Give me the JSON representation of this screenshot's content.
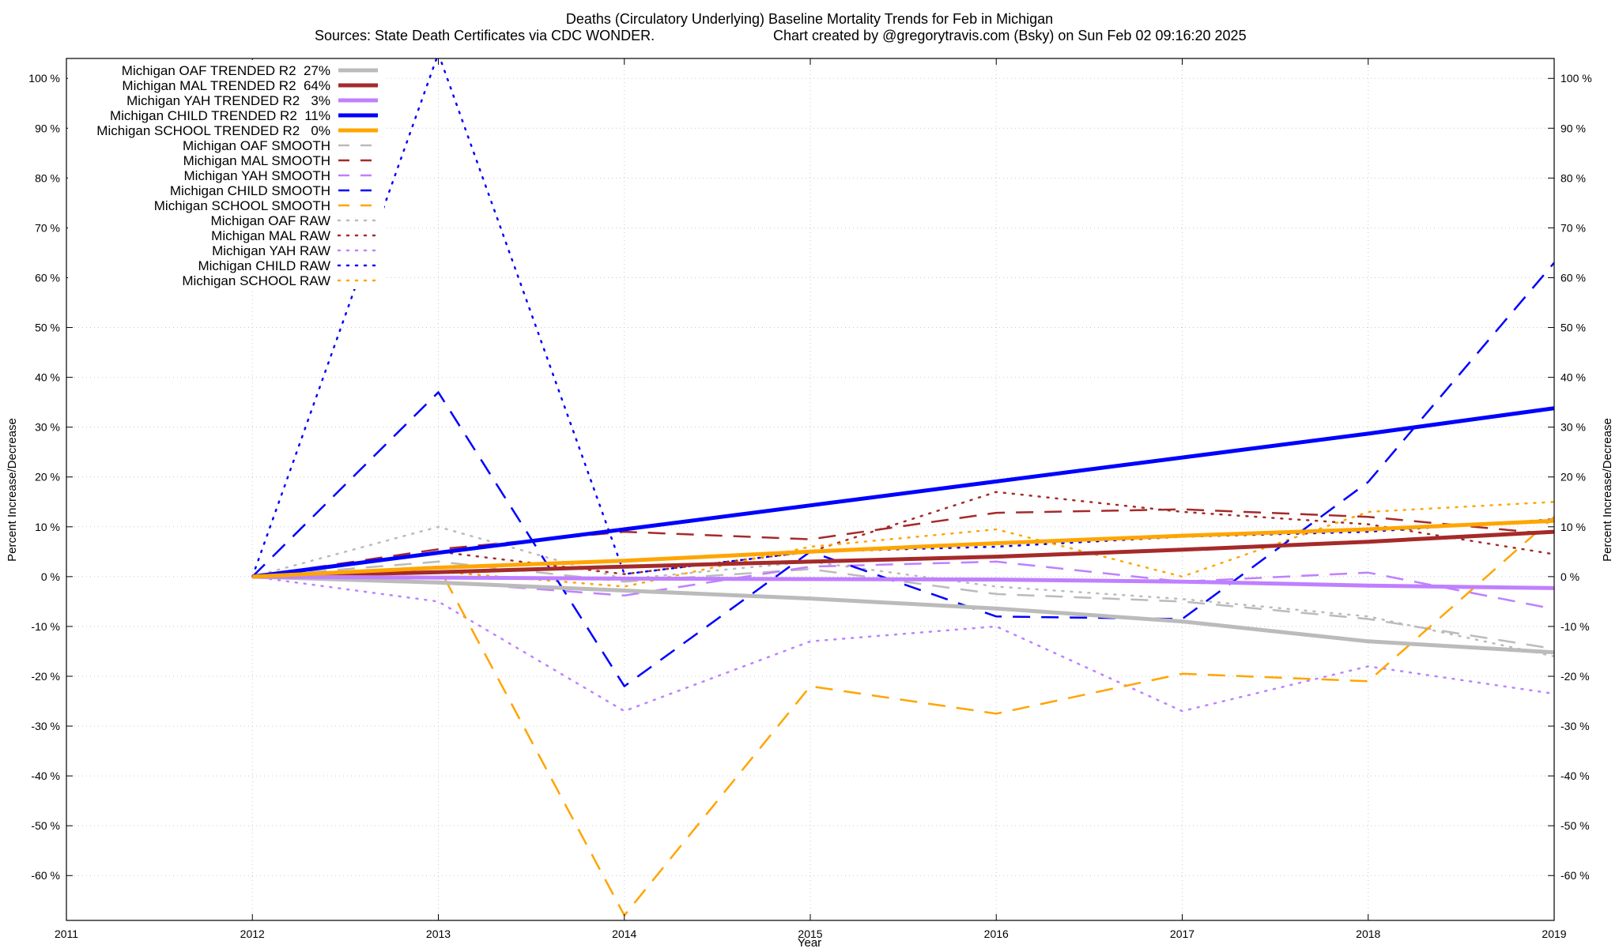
{
  "chart_data": {
    "type": "line",
    "title": "Deaths (Circulatory Underlying)  Baseline Mortality Trends for Feb in Michigan",
    "subtitle_left": "Sources: State Death Certificates via CDC WONDER.",
    "subtitle_right": "Chart created by @gregorytravis.com (Bsky) on Sun Feb 02 09:16:20 2025",
    "xlabel": "Year",
    "ylabel_left": "Percent Increase/Decrease",
    "ylabel_right": "Percent Increase/Decrease",
    "xlim": [
      2011,
      2019
    ],
    "ylim": [
      -69,
      104
    ],
    "x_ticks": [
      2011,
      2012,
      2013,
      2014,
      2015,
      2016,
      2017,
      2018,
      2019
    ],
    "x_tick_labels": [
      "2011",
      "2012",
      "2013",
      "2014",
      "2015",
      "2016",
      "2017",
      "2018",
      "2019"
    ],
    "y_ticks": [
      -60,
      -50,
      -40,
      -30,
      -20,
      -10,
      0,
      10,
      20,
      30,
      40,
      50,
      60,
      70,
      80,
      90,
      100
    ],
    "y_tick_labels": [
      "-60 %",
      "-50 %",
      "-40 %",
      "-30 %",
      "-20 %",
      "-10 %",
      "0 %",
      "10 %",
      "20 %",
      "30 %",
      "40 %",
      "50 %",
      "60 %",
      "70 %",
      "80 %",
      "90 %",
      "100 %"
    ],
    "grid": true,
    "legend_position": "top-left",
    "x": [
      2012,
      2013,
      2014,
      2015,
      2016,
      2017,
      2018,
      2019
    ],
    "colors": {
      "oaf": "#bbbbbb",
      "mal": "#a52a2a",
      "yah": "#bf80ff",
      "child": "#0000ff",
      "school": "#ffa500"
    },
    "series": [
      {
        "name": "Michigan OAF TRENDED R2  27%",
        "color": "oaf",
        "style": "trend",
        "values": [
          0,
          -1.2,
          -2.8,
          -4.4,
          -6.4,
          -9.0,
          -13.0,
          -15.2
        ]
      },
      {
        "name": "Michigan MAL TRENDED R2  64%",
        "color": "mal",
        "style": "trend",
        "values": [
          0,
          0.9,
          2.0,
          3.0,
          4.0,
          5.4,
          7.0,
          9.0
        ]
      },
      {
        "name": "Michigan YAH TRENDED R2   3%",
        "color": "yah",
        "style": "trend",
        "values": [
          0,
          -0.2,
          -0.4,
          -0.5,
          -0.6,
          -1.0,
          -1.8,
          -2.3
        ]
      },
      {
        "name": "Michigan CHILD TRENDED R2  11%",
        "color": "child",
        "style": "trend",
        "values": [
          0,
          4.8,
          9.5,
          14.3,
          19.1,
          23.9,
          28.7,
          33.8
        ]
      },
      {
        "name": "Michigan SCHOOL TRENDED R2   0%",
        "color": "school",
        "style": "trend",
        "values": [
          0,
          1.8,
          3.2,
          5.0,
          6.7,
          8.2,
          9.5,
          11.2
        ]
      },
      {
        "name": "Michigan OAF SMOOTH",
        "color": "oaf",
        "style": "smooth",
        "values": [
          0,
          3.0,
          -1.0,
          1.5,
          -3.5,
          -5.0,
          -8.5,
          -14.5
        ]
      },
      {
        "name": "Michigan MAL SMOOTH",
        "color": "mal",
        "style": "smooth",
        "values": [
          0,
          5.5,
          9.0,
          7.5,
          12.8,
          13.5,
          12.0,
          8.5
        ]
      },
      {
        "name": "Michigan YAH SMOOTH",
        "color": "yah",
        "style": "smooth",
        "values": [
          0,
          -1.0,
          -3.8,
          2.0,
          3.0,
          -1.0,
          0.8,
          -6.5
        ]
      },
      {
        "name": "Michigan CHILD SMOOTH",
        "color": "child",
        "style": "smooth",
        "values": [
          0,
          37.0,
          -22.0,
          5.0,
          -8.0,
          -8.5,
          19.0,
          63.0
        ]
      },
      {
        "name": "Michigan SCHOOL SMOOTH",
        "color": "school",
        "style": "smooth",
        "values": [
          0,
          2.0,
          -68.0,
          -22.0,
          -27.5,
          -19.5,
          -21.0,
          12.0
        ]
      },
      {
        "name": "Michigan OAF RAW",
        "color": "oaf",
        "style": "raw",
        "values": [
          0,
          10.0,
          -0.5,
          3.0,
          -2.0,
          -4.5,
          -8.0,
          -16.0
        ]
      },
      {
        "name": "Michigan MAL RAW",
        "color": "mal",
        "style": "raw",
        "values": [
          0,
          5.0,
          0.5,
          5.0,
          17.0,
          13.0,
          10.5,
          4.5
        ]
      },
      {
        "name": "Michigan YAH RAW",
        "color": "yah",
        "style": "raw",
        "values": [
          0,
          -5.0,
          -27.0,
          -13.0,
          -10.0,
          -27.0,
          -18.0,
          -23.5
        ]
      },
      {
        "name": "Michigan CHILD RAW",
        "color": "child",
        "style": "raw",
        "values": [
          0,
          105.0,
          0.5,
          5.0,
          6.0,
          8.0,
          9.0,
          11.5
        ]
      },
      {
        "name": "Michigan SCHOOL RAW",
        "color": "school",
        "style": "raw",
        "values": [
          0,
          1.0,
          -2.0,
          6.0,
          9.5,
          0.0,
          13.0,
          15.0
        ]
      }
    ]
  }
}
